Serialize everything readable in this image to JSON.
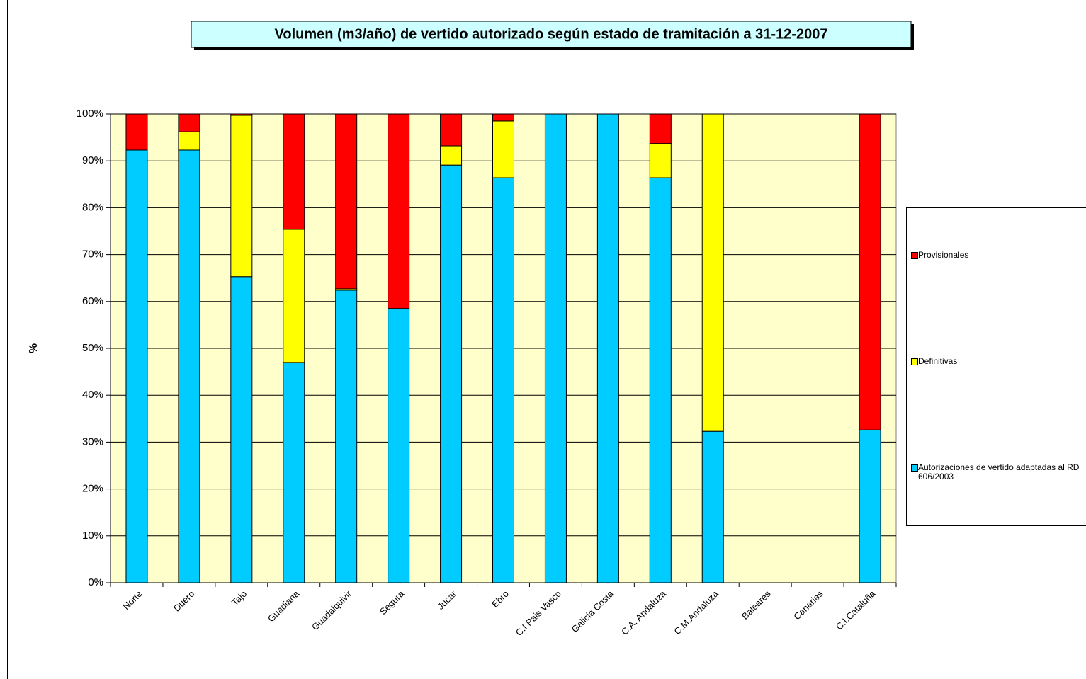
{
  "chart_data": {
    "type": "stacked_bar",
    "title": "Volumen (m3/año) de vertido autorizado según estado de tramitación a 31-12-2007",
    "y_label": "%",
    "categories": [
      "Norte",
      "Duero",
      "Tajo",
      "Guadiana",
      "Guadalquivir",
      "Segura",
      "Jucar",
      "Ebro",
      "C.I.Pais Vasco",
      "Galicia Costa",
      "C.A. Andaluza",
      "C.M.Andaluza",
      "Baleares",
      "Canarias",
      "C.I.Cataluña"
    ],
    "series": [
      {
        "name": "Autorizaciones de vertido adaptadas al RD 606/2003",
        "color": "#00ccff",
        "values": [
          92.3,
          92.3,
          65.3,
          47.0,
          62.4,
          58.5,
          89.1,
          86.4,
          100,
          100,
          86.4,
          32.3,
          null,
          null,
          32.6
        ]
      },
      {
        "name": "Definitivas",
        "color": "#ffff00",
        "values": [
          0,
          3.9,
          34.4,
          28.4,
          0.3,
          0,
          4.1,
          12.1,
          0,
          0,
          7.3,
          67.7,
          null,
          null,
          0
        ]
      },
      {
        "name": "Provisionales",
        "color": "#ff0000",
        "values": [
          7.7,
          3.8,
          0.3,
          24.6,
          37.3,
          41.5,
          6.8,
          1.5,
          0,
          0,
          6.3,
          0,
          null,
          null,
          67.4
        ]
      }
    ],
    "ylim": [
      0,
      100
    ],
    "yticks": [
      {
        "value": 0,
        "label": "0%"
      },
      {
        "value": 10,
        "label": "10%"
      },
      {
        "value": 20,
        "label": "20%"
      },
      {
        "value": 30,
        "label": "30%"
      },
      {
        "value": 40,
        "label": "40%"
      },
      {
        "value": 50,
        "label": "50%"
      },
      {
        "value": 60,
        "label": "60%"
      },
      {
        "value": 70,
        "label": "70%"
      },
      {
        "value": 80,
        "label": "80%"
      },
      {
        "value": 90,
        "label": "90%"
      },
      {
        "value": 100,
        "label": "100%"
      }
    ],
    "grid": true,
    "plot_background": "#ffffcc"
  }
}
